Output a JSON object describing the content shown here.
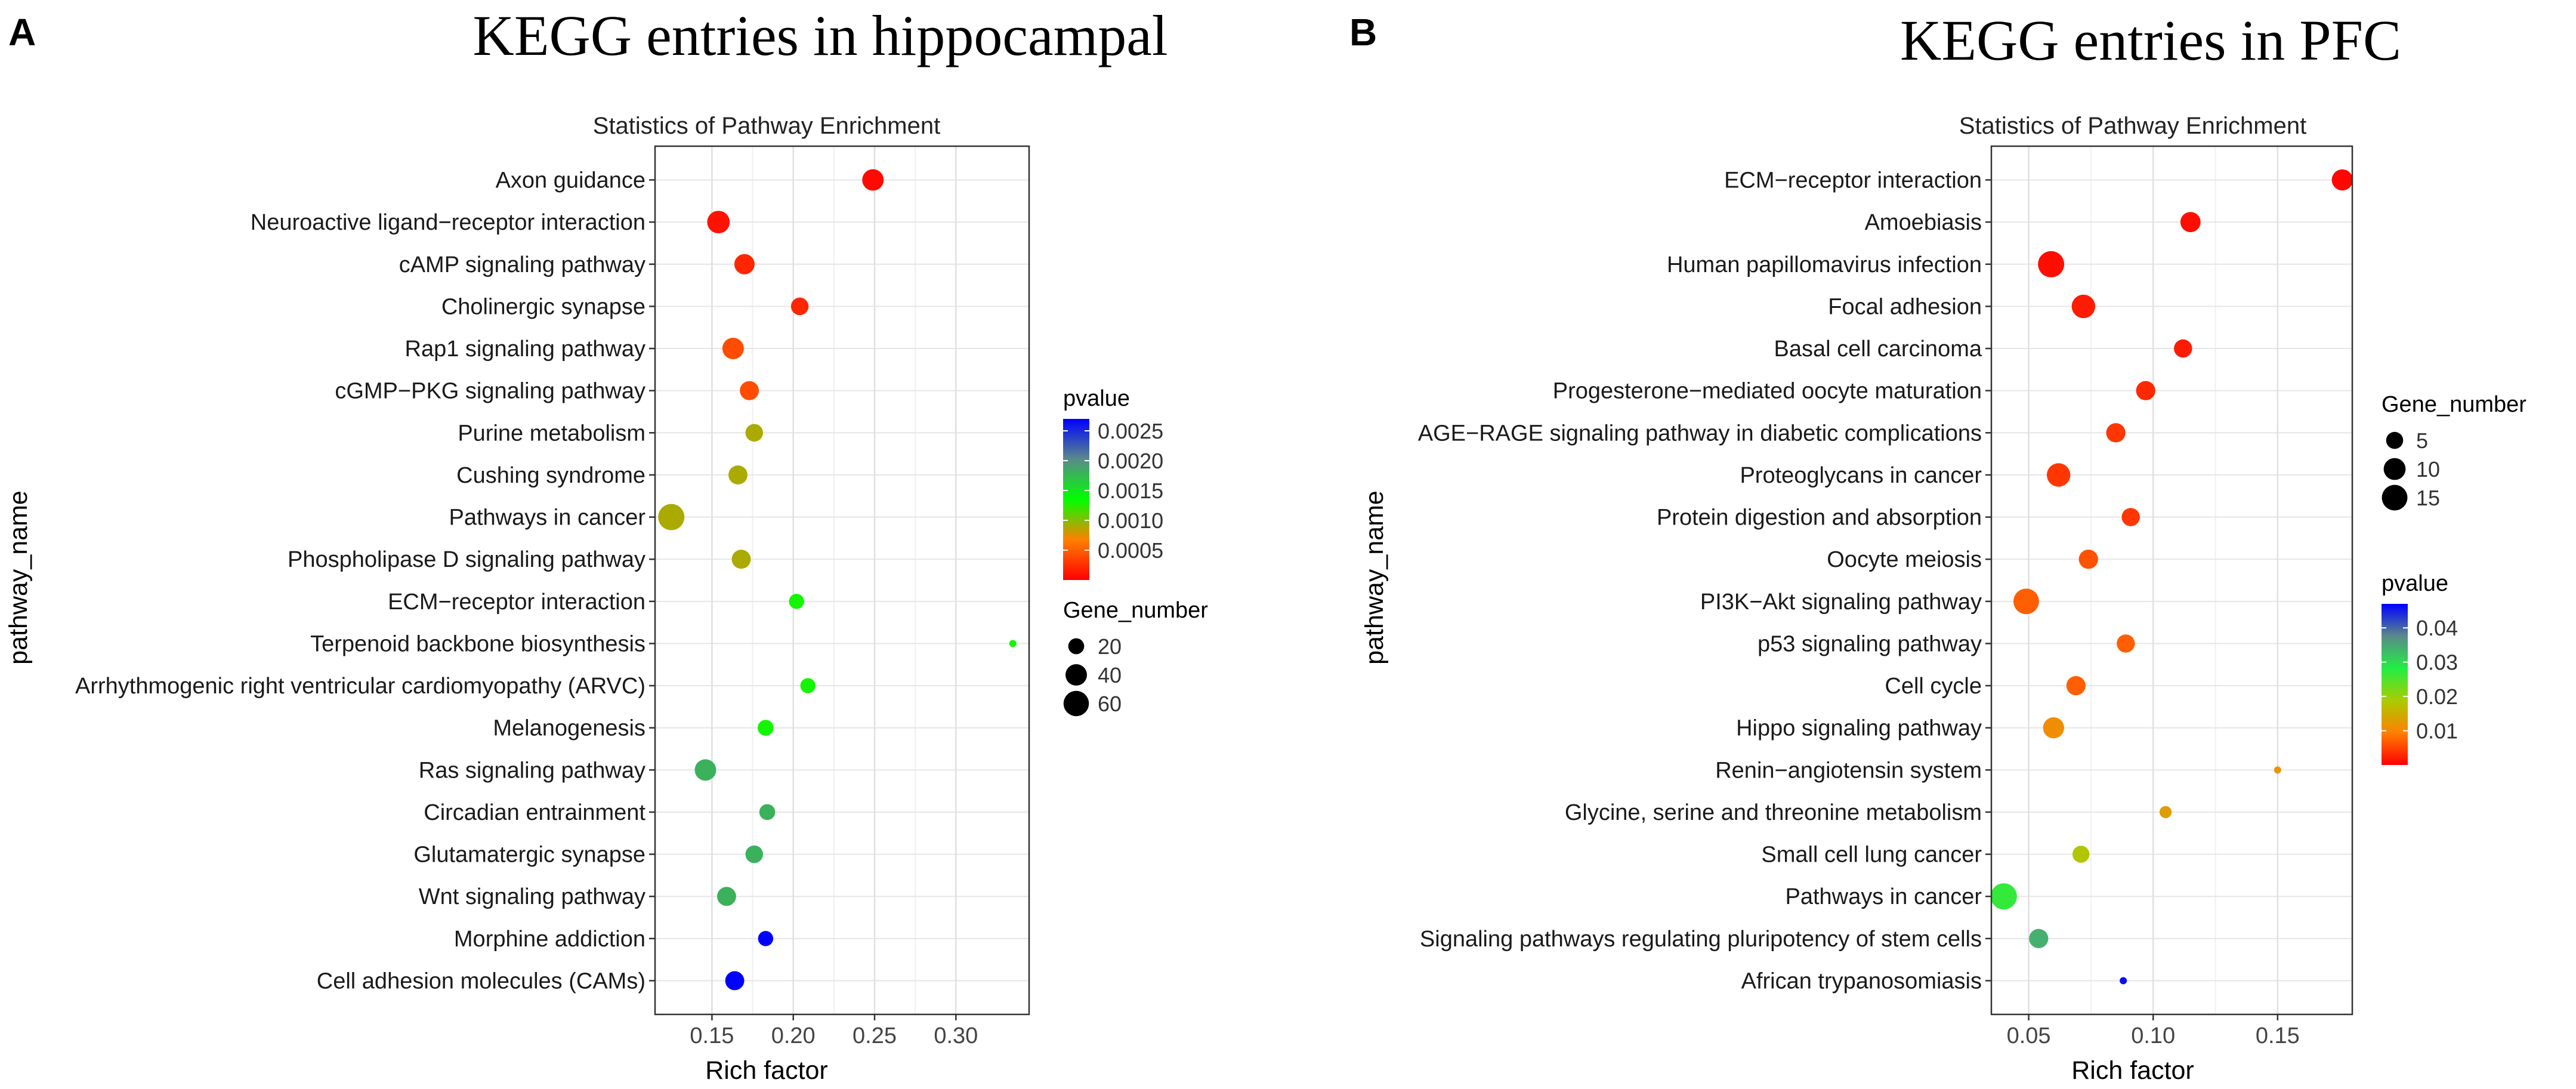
{
  "panels": [
    {
      "label": "A",
      "heading": "KEGG entries in hippocampal"
    },
    {
      "label": "B",
      "heading": "KEGG entries in PFC"
    }
  ],
  "chart_data": [
    {
      "type": "scatter",
      "title": "Statistics of Pathway Enrichment",
      "xlabel": "Rich factor",
      "ylabel": "pathway_name",
      "xlim": [
        0.115,
        0.345
      ],
      "xticks": [
        0.15,
        0.2,
        0.25,
        0.3
      ],
      "xtick_labels": [
        "0.15",
        "0.20",
        "0.25",
        "0.30"
      ],
      "grid": true,
      "categories": [
        "Axon guidance",
        "Neuroactive ligand−receptor interaction",
        "cAMP signaling pathway",
        "Cholinergic synapse",
        "Rap1 signaling pathway",
        "cGMP−PKG signaling pathway",
        "Purine metabolism",
        "Cushing syndrome",
        "Pathways in cancer",
        "Phospholipase D signaling pathway",
        "ECM−receptor interaction",
        "Terpenoid backbone biosynthesis",
        "Arrhythmogenic right ventricular cardiomyopathy (ARVC)",
        "Melanogenesis",
        "Ras signaling pathway",
        "Circadian entrainment",
        "Glutamatergic synapse",
        "Wnt signaling pathway",
        "Morphine addiction",
        "Cell adhesion molecules (CAMs)"
      ],
      "rich_factor": [
        0.249,
        0.154,
        0.17,
        0.204,
        0.163,
        0.173,
        0.176,
        0.166,
        0.125,
        0.168,
        0.202,
        0.335,
        0.209,
        0.183,
        0.146,
        0.184,
        0.176,
        0.159,
        0.183,
        0.164
      ],
      "pvalue": [
        5e-05,
        0.0001,
        0.0002,
        0.0002,
        0.0004,
        0.0004,
        0.0009,
        0.0009,
        0.0009,
        0.0009,
        0.0013,
        0.0013,
        0.0013,
        0.0013,
        0.0018,
        0.0018,
        0.0018,
        0.0018,
        0.0027,
        0.0027
      ],
      "gene_number": [
        40,
        45,
        35,
        25,
        40,
        30,
        25,
        30,
        65,
        30,
        18,
        8,
        18,
        20,
        40,
        20,
        25,
        30,
        18,
        30
      ],
      "size_legend": {
        "title": "Gene_number",
        "values": [
          20,
          40,
          60
        ],
        "labels": [
          "20",
          "40",
          "60"
        ]
      },
      "color_legend": {
        "title": "pvalue",
        "min": 0.0,
        "max": 0.0027,
        "ticks": [
          0.0025,
          0.002,
          0.0015,
          0.001,
          0.0005
        ],
        "tick_labels": [
          "0.0025",
          "0.0020",
          "0.0015",
          "0.0010",
          "0.0005"
        ],
        "colors": [
          "#ff0000",
          "#ff8000",
          "#00ff00",
          "#5a8a8a",
          "#0000ff"
        ]
      },
      "legend_order": "color-first",
      "size_scale": {
        "min": 8,
        "max": 65
      }
    },
    {
      "type": "scatter",
      "title": "Statistics of Pathway Enrichment",
      "xlabel": "Rich factor",
      "ylabel": "pathway_name",
      "xlim": [
        0.035,
        0.18
      ],
      "xticks": [
        0.05,
        0.1,
        0.15
      ],
      "xtick_labels": [
        "0.05",
        "0.10",
        "0.15"
      ],
      "grid": true,
      "categories": [
        "ECM−receptor interaction",
        "Amoebiasis",
        "Human papillomavirus infection",
        "Focal adhesion",
        "Basal cell carcinoma",
        "Progesterone−mediated oocyte maturation",
        "AGE−RAGE signaling pathway in diabetic complications",
        "Proteoglycans in cancer",
        "Protein digestion and absorption",
        "Oocyte meiosis",
        "PI3K−Akt signaling pathway",
        "p53 signaling pathway",
        "Cell cycle",
        "Hippo signaling pathway",
        "Renin−angiotensin system",
        "Glycine, serine and threonine metabolism",
        "Small cell lung cancer",
        "Pathways in cancer",
        "Signaling pathways regulating pluripotency of stem cells",
        "African trypanosomiasis"
      ],
      "rich_factor": [
        0.176,
        0.115,
        0.059,
        0.072,
        0.112,
        0.097,
        0.085,
        0.062,
        0.091,
        0.074,
        0.049,
        0.089,
        0.069,
        0.06,
        0.15,
        0.105,
        0.071,
        0.04,
        0.054,
        0.088
      ],
      "pvalue": [
        0.0005,
        0.001,
        0.001,
        0.002,
        0.002,
        0.003,
        0.004,
        0.004,
        0.004,
        0.006,
        0.007,
        0.007,
        0.007,
        0.011,
        0.012,
        0.013,
        0.018,
        0.027,
        0.034,
        0.046
      ],
      "gene_number": [
        9,
        8,
        16,
        12,
        6,
        7,
        7,
        12,
        6,
        7,
        15,
        6,
        7,
        9,
        1,
        2,
        5,
        16,
        7,
        1
      ],
      "size_legend": {
        "title": "Gene_number",
        "values": [
          5,
          10,
          15
        ],
        "labels": [
          "5",
          "10",
          "15"
        ]
      },
      "color_legend": {
        "title": "pvalue",
        "min": 0.0,
        "max": 0.047,
        "ticks": [
          0.04,
          0.03,
          0.02,
          0.01
        ],
        "tick_labels": [
          "0.04",
          "0.03",
          "0.02",
          "0.01"
        ],
        "colors": [
          "#ff0000",
          "#ff8000",
          "#aacc00",
          "#22ee44",
          "#5a8a8a",
          "#0000ff"
        ]
      },
      "legend_order": "size-first",
      "size_scale": {
        "min": 1,
        "max": 16
      }
    }
  ]
}
